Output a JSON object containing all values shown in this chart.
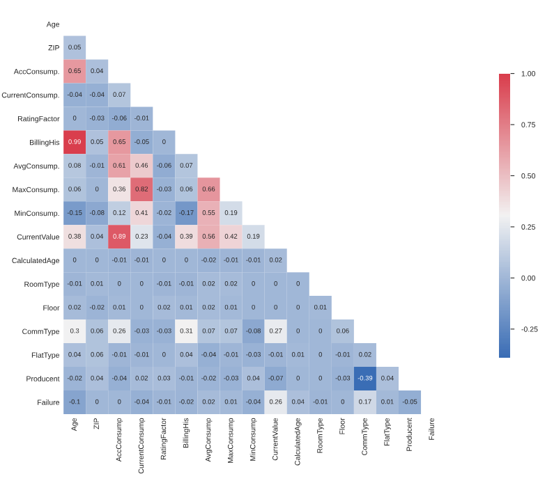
{
  "chart_data": {
    "type": "heatmap",
    "categories": [
      "Age",
      "ZIP",
      "AccConsump",
      "CurrentConsump",
      "RatingFactor",
      "BillingHis",
      "AvgConsump",
      "MaxConsump",
      "MinConsump",
      "CurrentValue",
      "CalculatedAge",
      "RoomType",
      "Floor",
      "CommType",
      "FlatType",
      "Producent",
      "Failure"
    ],
    "y_categories": [
      "Age",
      "ZIP",
      "AccConsump.",
      "CurrentConsump.",
      "RatingFactor",
      "BillingHis",
      "AvgConsump.",
      "MaxConsump.",
      "MinConsump.",
      "CurrentValue",
      "CalculatedAge",
      "RoomType",
      "Floor",
      "CommType",
      "FlatType",
      "Producent",
      "Failure"
    ],
    "cells": [
      [
        null,
        null,
        null,
        null,
        null,
        null,
        null,
        null,
        null,
        null,
        null,
        null,
        null,
        null,
        null,
        null,
        null
      ],
      [
        0.05,
        null,
        null,
        null,
        null,
        null,
        null,
        null,
        null,
        null,
        null,
        null,
        null,
        null,
        null,
        null,
        null
      ],
      [
        0.65,
        0.04,
        null,
        null,
        null,
        null,
        null,
        null,
        null,
        null,
        null,
        null,
        null,
        null,
        null,
        null,
        null
      ],
      [
        -0.04,
        -0.04,
        0.07,
        null,
        null,
        null,
        null,
        null,
        null,
        null,
        null,
        null,
        null,
        null,
        null,
        null,
        null
      ],
      [
        0,
        -0.03,
        -0.06,
        -0.01,
        null,
        null,
        null,
        null,
        null,
        null,
        null,
        null,
        null,
        null,
        null,
        null,
        null
      ],
      [
        0.99,
        0.05,
        0.65,
        -0.05,
        0,
        null,
        null,
        null,
        null,
        null,
        null,
        null,
        null,
        null,
        null,
        null,
        null
      ],
      [
        0.08,
        -0.01,
        0.61,
        0.46,
        -0.06,
        0.07,
        null,
        null,
        null,
        null,
        null,
        null,
        null,
        null,
        null,
        null,
        null
      ],
      [
        0.06,
        0,
        0.36,
        0.82,
        -0.03,
        0.06,
        0.66,
        null,
        null,
        null,
        null,
        null,
        null,
        null,
        null,
        null,
        null
      ],
      [
        -0.15,
        -0.08,
        0.12,
        0.41,
        -0.02,
        -0.17,
        0.55,
        0.19,
        null,
        null,
        null,
        null,
        null,
        null,
        null,
        null,
        null
      ],
      [
        0.38,
        0.04,
        0.89,
        0.23,
        -0.04,
        0.39,
        0.56,
        0.42,
        0.19,
        null,
        null,
        null,
        null,
        null,
        null,
        null,
        null
      ],
      [
        0,
        0,
        -0.01,
        -0.01,
        0,
        0,
        -0.02,
        -0.01,
        -0.01,
        0.02,
        null,
        null,
        null,
        null,
        null,
        null,
        null
      ],
      [
        -0.01,
        0.01,
        0,
        0,
        -0.01,
        -0.01,
        0.02,
        0.02,
        0,
        0,
        0,
        null,
        null,
        null,
        null,
        null,
        null
      ],
      [
        0.02,
        -0.02,
        0.01,
        0,
        0.02,
        0.01,
        0.02,
        0.01,
        0,
        0,
        0,
        0.01,
        null,
        null,
        null,
        null,
        null
      ],
      [
        0.3,
        0.06,
        0.26,
        -0.03,
        -0.03,
        0.31,
        0.07,
        0.07,
        -0.08,
        0.27,
        0,
        0,
        0.06,
        null,
        null,
        null,
        null
      ],
      [
        0.04,
        0.06,
        -0.01,
        -0.01,
        0,
        0.04,
        -0.04,
        -0.01,
        -0.03,
        -0.01,
        0.01,
        0,
        -0.01,
        0.02,
        null,
        null,
        null
      ],
      [
        -0.02,
        0.04,
        -0.04,
        0.02,
        0.03,
        -0.01,
        -0.02,
        -0.03,
        0.04,
        -0.07,
        0,
        0,
        -0.03,
        -0.39,
        0.04,
        null,
        null
      ],
      [
        -0.1,
        0,
        0,
        -0.04,
        -0.01,
        -0.02,
        0.02,
        0.01,
        -0.04,
        0.26,
        0.04,
        -0.01,
        0,
        0.17,
        0.01,
        -0.05,
        null
      ]
    ],
    "data_labels": true,
    "colors": [
      "#3a6db5",
      "#f2f2f2",
      "#d93d4c"
    ],
    "clim": [
      -0.39,
      1.0
    ],
    "cticks": [
      {
        "value": -0.25,
        "label": "-0.25"
      },
      {
        "value": 0,
        "label": "0.00"
      },
      {
        "value": 0.25,
        "label": "0.25"
      },
      {
        "value": 0.5,
        "label": "0.50"
      },
      {
        "value": 0.75,
        "label": "0.75"
      },
      {
        "value": 1.0,
        "label": "1.00"
      }
    ]
  }
}
